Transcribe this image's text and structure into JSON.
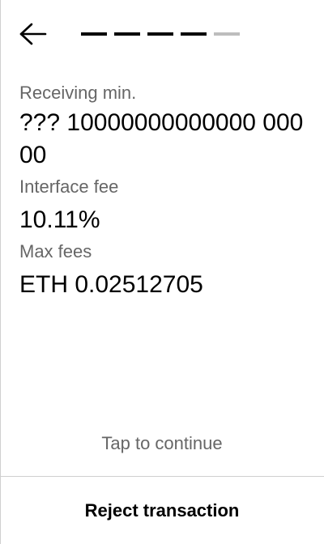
{
  "header": {
    "back_icon": "arrow-left-icon",
    "progress": {
      "total_steps": 5,
      "completed_steps": 4,
      "active_color": "#000000",
      "inactive_color": "#bdbdbd"
    }
  },
  "fields": {
    "receiving_min": {
      "label": "Receiving min.",
      "value": "??? 10000000000000 00000"
    },
    "interface_fee": {
      "label": "Interface fee",
      "value": "10.11%"
    },
    "max_fees": {
      "label": "Max fees",
      "value": "ETH 0.02512705"
    }
  },
  "footer": {
    "tap_to_continue": "Tap to continue",
    "reject_label": "Reject transaction"
  }
}
